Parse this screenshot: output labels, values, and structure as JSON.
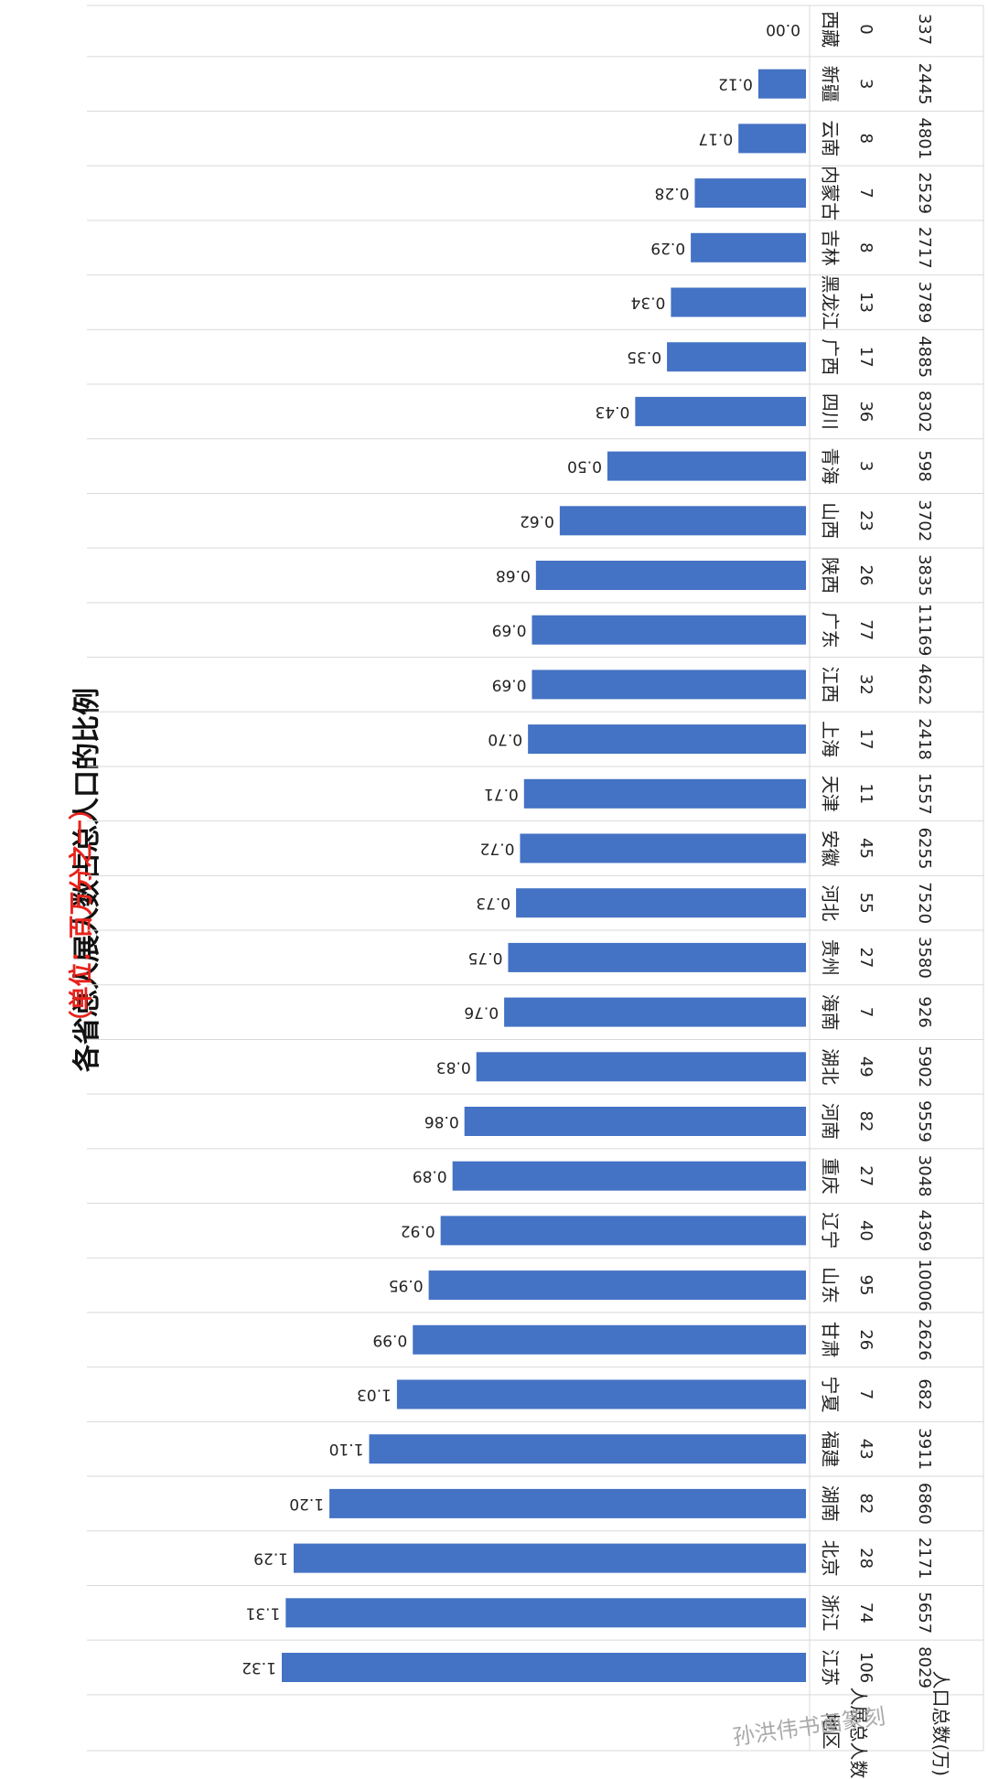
{
  "title": "各省总人展人数占总人口的比例",
  "subtitle": "（单位：百万分之一）",
  "header": {
    "region": "地区",
    "count": "人展总人数",
    "population": "人口总数(万)"
  },
  "watermark": "孙洪伟书画篆刻",
  "colors": {
    "bar": "#4472c4",
    "subtitle": "#e8221b",
    "grid": "#d9d9d9"
  },
  "chart_data": {
    "type": "bar",
    "orientation": "vertical-rotated",
    "categories": [
      "江苏",
      "浙江",
      "北京",
      "湖南",
      "福建",
      "宁夏",
      "甘肃",
      "山东",
      "辽宁",
      "重庆",
      "河南",
      "湖北",
      "海南",
      "贵州",
      "河北",
      "安徽",
      "天津",
      "上海",
      "江西",
      "广东",
      "陕西",
      "山西",
      "青海",
      "四川",
      "广西",
      "黑龙江",
      "吉林",
      "内蒙古",
      "云南",
      "新疆",
      "西藏"
    ],
    "values": [
      1.32,
      1.31,
      1.29,
      1.2,
      1.1,
      1.03,
      0.99,
      0.95,
      0.92,
      0.89,
      0.86,
      0.83,
      0.76,
      0.75,
      0.73,
      0.72,
      0.71,
      0.7,
      0.69,
      0.69,
      0.68,
      0.62,
      0.5,
      0.43,
      0.35,
      0.34,
      0.29,
      0.28,
      0.17,
      0.12,
      0.0
    ],
    "value_labels": [
      "1.32",
      "1.31",
      "1.29",
      "1.20",
      "1.10",
      "1.03",
      "0.99",
      "0.95",
      "0.92",
      "0.89",
      "0.86",
      "0.83",
      "0.76",
      "0.75",
      "0.73",
      "0.72",
      "0.71",
      "0.70",
      "0.69",
      "0.69",
      "0.68",
      "0.62",
      "0.50",
      "0.43",
      "0.35",
      "0.34",
      "0.29",
      "0.28",
      "0.17",
      "0.12",
      "0.00"
    ],
    "counts": [
      "106",
      "74",
      "28",
      "82",
      "43",
      "7",
      "26",
      "95",
      "40",
      "27",
      "82",
      "49",
      "7",
      "27",
      "55",
      "45",
      "11",
      "17",
      "32",
      "77",
      "26",
      "23",
      "3",
      "36",
      "17",
      "13",
      "8",
      "7",
      "8",
      "3",
      "0"
    ],
    "populations": [
      "8029",
      "5657",
      "2171",
      "6860",
      "3911",
      "682",
      "2626",
      "10006",
      "4369",
      "3048",
      "9559",
      "5902",
      "926",
      "3580",
      "7520",
      "6255",
      "1557",
      "2418",
      "4622",
      "11169",
      "3835",
      "3702",
      "598",
      "8302",
      "4885",
      "3789",
      "2717",
      "2529",
      "4801",
      "2445",
      "337"
    ],
    "ylim": [
      0,
      1.4
    ],
    "grid": false
  }
}
